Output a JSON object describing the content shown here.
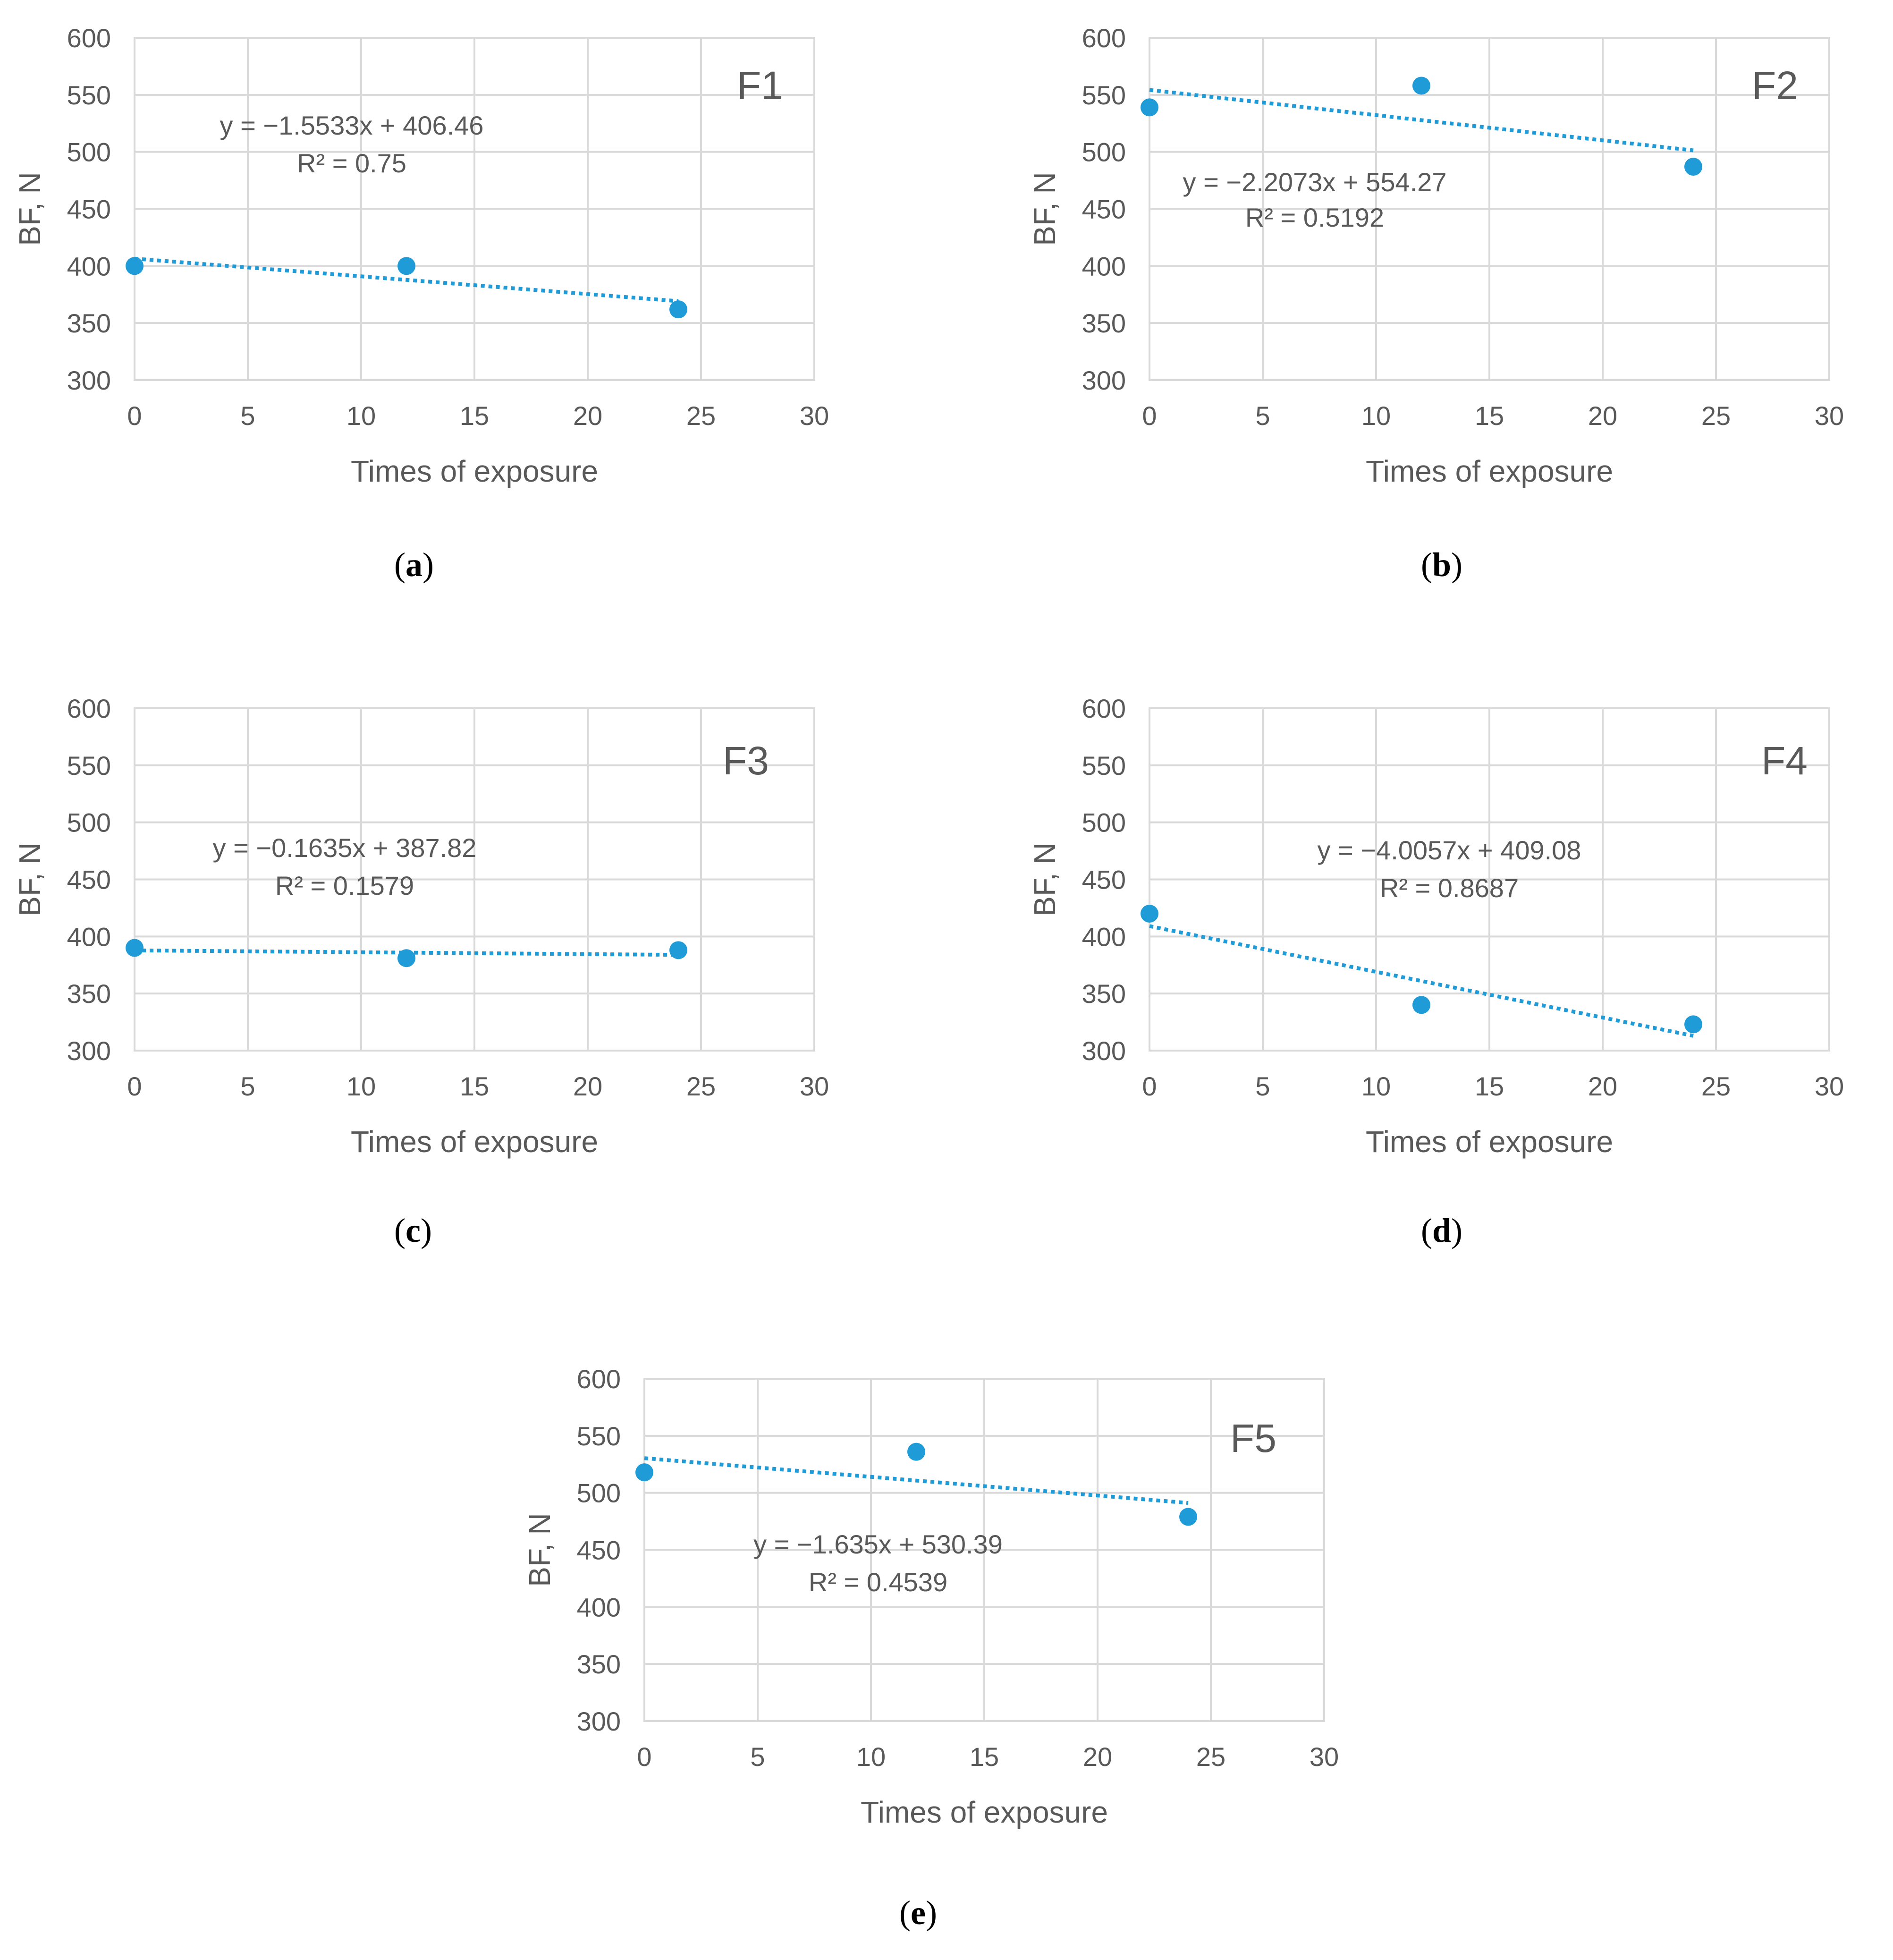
{
  "figure": {
    "captions": [
      "(a)",
      "(b)",
      "(c)",
      "(d)",
      "(e)"
    ]
  },
  "chart_data": [
    {
      "id": "a",
      "type": "scatter",
      "panel_label": "F1",
      "caption_letter": "a",
      "xlabel": "Times of exposure",
      "ylabel": "BF, N",
      "xlim": [
        0,
        30
      ],
      "ylim": [
        300,
        600
      ],
      "xticks": [
        "0",
        "5",
        "10",
        "15",
        "20",
        "25",
        "30"
      ],
      "yticks": [
        "300",
        "350",
        "400",
        "450",
        "500",
        "550",
        "600"
      ],
      "points": [
        {
          "x": 0,
          "y": 400
        },
        {
          "x": 12,
          "y": 400
        },
        {
          "x": 24,
          "y": 362
        }
      ],
      "trendline": {
        "slope": -1.5533,
        "intercept": 406.46,
        "x_range": [
          0,
          24
        ]
      },
      "equation_text": "y = −1.5533x + 406.46",
      "r2_text": "R² = 0.75",
      "grid": true,
      "marker_color": "#1f9bd8",
      "trend_color": "#1f9bd8"
    },
    {
      "id": "b",
      "type": "scatter",
      "panel_label": "F2",
      "caption_letter": "b",
      "xlabel": "Times of exposure",
      "ylabel": "BF, N",
      "xlim": [
        0,
        30
      ],
      "ylim": [
        300,
        600
      ],
      "xticks": [
        "0",
        "5",
        "10",
        "15",
        "20",
        "25",
        "30"
      ],
      "yticks": [
        "300",
        "350",
        "400",
        "450",
        "500",
        "550",
        "600"
      ],
      "points": [
        {
          "x": 0,
          "y": 539
        },
        {
          "x": 12,
          "y": 558
        },
        {
          "x": 24,
          "y": 487
        }
      ],
      "trendline": {
        "slope": -2.2073,
        "intercept": 554.27,
        "x_range": [
          0,
          24
        ]
      },
      "equation_text": "y = −2.2073x + 554.27",
      "r2_text": "R² = 0.5192",
      "grid": true,
      "marker_color": "#1f9bd8",
      "trend_color": "#1f9bd8"
    },
    {
      "id": "c",
      "type": "scatter",
      "panel_label": "F3",
      "caption_letter": "c",
      "xlabel": "Times of exposure",
      "ylabel": "BF, N",
      "xlim": [
        0,
        30
      ],
      "ylim": [
        300,
        600
      ],
      "xticks": [
        "0",
        "5",
        "10",
        "15",
        "20",
        "25",
        "30"
      ],
      "yticks": [
        "300",
        "350",
        "400",
        "450",
        "500",
        "550",
        "600"
      ],
      "points": [
        {
          "x": 0,
          "y": 390
        },
        {
          "x": 12,
          "y": 381
        },
        {
          "x": 24,
          "y": 388
        }
      ],
      "trendline": {
        "slope": -0.1635,
        "intercept": 387.82,
        "x_range": [
          0,
          24
        ]
      },
      "equation_text": "y = −0.1635x + 387.82",
      "r2_text": "R² = 0.1579",
      "grid": true,
      "marker_color": "#1f9bd8",
      "trend_color": "#1f9bd8"
    },
    {
      "id": "d",
      "type": "scatter",
      "panel_label": "F4",
      "caption_letter": "d",
      "xlabel": "Times of exposure",
      "ylabel": "BF, N",
      "xlim": [
        0,
        30
      ],
      "ylim": [
        300,
        600
      ],
      "xticks": [
        "0",
        "5",
        "10",
        "15",
        "20",
        "25",
        "30"
      ],
      "yticks": [
        "300",
        "350",
        "400",
        "450",
        "500",
        "550",
        "600"
      ],
      "points": [
        {
          "x": 0,
          "y": 420
        },
        {
          "x": 12,
          "y": 340
        },
        {
          "x": 24,
          "y": 323
        }
      ],
      "trendline": {
        "slope": -4.0057,
        "intercept": 409.08,
        "x_range": [
          0,
          24
        ]
      },
      "equation_text": "y = −4.0057x + 409.08",
      "r2_text": "R² = 0.8687",
      "grid": true,
      "marker_color": "#1f9bd8",
      "trend_color": "#1f9bd8"
    },
    {
      "id": "e",
      "type": "scatter",
      "panel_label": "F5",
      "caption_letter": "e",
      "xlabel": "Times of exposure",
      "ylabel": "BF, N",
      "xlim": [
        0,
        30
      ],
      "ylim": [
        300,
        600
      ],
      "xticks": [
        "0",
        "5",
        "10",
        "15",
        "20",
        "25",
        "30"
      ],
      "yticks": [
        "300",
        "350",
        "400",
        "450",
        "500",
        "550",
        "600"
      ],
      "points": [
        {
          "x": 0,
          "y": 518
        },
        {
          "x": 12,
          "y": 536
        },
        {
          "x": 24,
          "y": 479
        }
      ],
      "trendline": {
        "slope": -1.635,
        "intercept": 530.39,
        "x_range": [
          0,
          24
        ]
      },
      "equation_text": "y = −1.635x + 530.39",
      "r2_text": "R² = 0.4539",
      "grid": true,
      "marker_color": "#1f9bd8",
      "trend_color": "#1f9bd8"
    }
  ]
}
